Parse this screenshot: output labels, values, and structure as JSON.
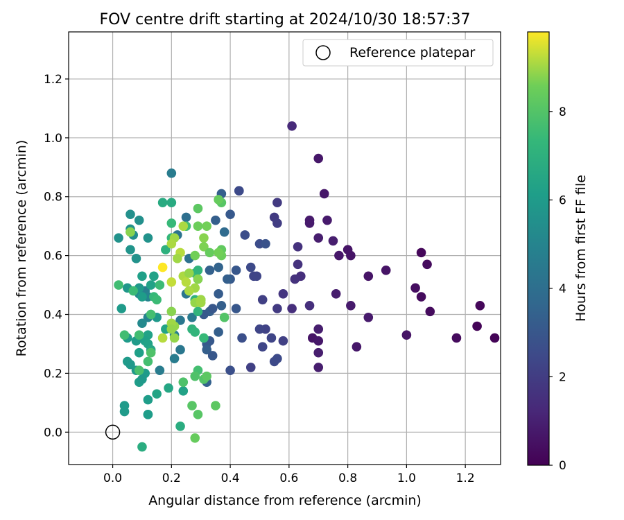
{
  "chart_data": {
    "type": "scatter",
    "title": "FOV centre drift starting at 2024/10/30 18:57:37",
    "xlabel": "Angular distance from reference (arcmin)",
    "ylabel": "Rotation from reference (arcmin)",
    "xlim": [
      -0.15,
      1.32
    ],
    "ylim": [
      -0.11,
      1.36
    ],
    "xticks": [
      "0.0",
      "0.2",
      "0.4",
      "0.6",
      "0.8",
      "1.0",
      "1.2"
    ],
    "yticks": [
      "0.0",
      "0.2",
      "0.4",
      "0.6",
      "0.8",
      "1.0",
      "1.2"
    ],
    "grid": true,
    "legend": {
      "position": "top-right",
      "label": "Reference platepar"
    },
    "reference_point": {
      "x": 0.0,
      "y": 0.0
    },
    "colorbar": {
      "label": "Hours from first FF file",
      "range": [
        0,
        9.8
      ],
      "ticks": [
        "0",
        "2",
        "4",
        "6",
        "8"
      ],
      "colormap": "viridis"
    },
    "series": [
      {
        "points": [
          [
            0.61,
            1.04,
            1.3
          ],
          [
            0.7,
            0.93,
            0.7
          ],
          [
            0.72,
            0.81,
            0.7
          ],
          [
            0.73,
            0.72,
            0.8
          ],
          [
            0.67,
            0.71,
            0.8
          ],
          [
            0.75,
            0.65,
            0.9
          ],
          [
            0.7,
            0.66,
            0.9
          ],
          [
            0.77,
            0.6,
            0.7
          ],
          [
            0.8,
            0.62,
            0.6
          ],
          [
            0.81,
            0.6,
            0.6
          ],
          [
            0.56,
            0.78,
            1.9
          ],
          [
            0.55,
            0.73,
            1.9
          ],
          [
            0.56,
            0.71,
            2.0
          ],
          [
            0.67,
            0.72,
            0.8
          ],
          [
            0.63,
            0.63,
            1.6
          ],
          [
            0.63,
            0.57,
            1.6
          ],
          [
            0.64,
            0.53,
            1.5
          ],
          [
            0.62,
            0.52,
            1.6
          ],
          [
            0.5,
            0.64,
            2.6
          ],
          [
            0.52,
            0.64,
            2.8
          ],
          [
            0.47,
            0.56,
            2.5
          ],
          [
            0.48,
            0.53,
            2.3
          ],
          [
            0.49,
            0.53,
            2.3
          ],
          [
            0.43,
            0.82,
            2.8
          ],
          [
            0.43,
            0.82,
            2.5
          ],
          [
            0.45,
            0.67,
            2.6
          ],
          [
            0.37,
            0.81,
            3.3
          ],
          [
            0.4,
            0.74,
            3.1
          ],
          [
            0.38,
            0.68,
            3.8
          ],
          [
            0.35,
            0.72,
            3.3
          ],
          [
            0.36,
            0.56,
            3.5
          ],
          [
            0.4,
            0.52,
            3.1
          ],
          [
            0.39,
            0.52,
            3.3
          ],
          [
            0.42,
            0.55,
            3.0
          ],
          [
            0.33,
            0.55,
            3.4
          ],
          [
            0.93,
            0.55,
            0.6
          ],
          [
            0.87,
            0.53,
            0.6
          ],
          [
            1.03,
            0.49,
            0.4
          ],
          [
            1.05,
            0.61,
            0.2
          ],
          [
            1.07,
            0.57,
            0.3
          ],
          [
            1.05,
            0.46,
            0.3
          ],
          [
            1.08,
            0.41,
            0.3
          ],
          [
            0.76,
            0.47,
            0.9
          ],
          [
            0.81,
            0.43,
            0.8
          ],
          [
            0.87,
            0.39,
            0.8
          ],
          [
            0.83,
            0.29,
            0.7
          ],
          [
            1.0,
            0.33,
            0.6
          ],
          [
            1.17,
            0.32,
            0.3
          ],
          [
            1.24,
            0.36,
            0.1
          ],
          [
            1.25,
            0.43,
            0.2
          ],
          [
            1.3,
            0.32,
            0.1
          ],
          [
            0.7,
            0.35,
            0.9
          ],
          [
            0.68,
            0.32,
            0.6
          ],
          [
            0.7,
            0.31,
            0.7
          ],
          [
            0.7,
            0.27,
            0.9
          ],
          [
            0.7,
            0.22,
            0.9
          ],
          [
            0.67,
            0.43,
            1.5
          ],
          [
            0.61,
            0.42,
            1.5
          ],
          [
            0.58,
            0.47,
            1.7
          ],
          [
            0.56,
            0.42,
            1.9
          ],
          [
            0.51,
            0.45,
            2.1
          ],
          [
            0.52,
            0.35,
            2.2
          ],
          [
            0.5,
            0.35,
            2.3
          ],
          [
            0.54,
            0.32,
            2.3
          ],
          [
            0.58,
            0.31,
            2.1
          ],
          [
            0.51,
            0.29,
            2.3
          ],
          [
            0.56,
            0.25,
            2.5
          ],
          [
            0.55,
            0.24,
            2.5
          ],
          [
            0.47,
            0.22,
            2.1
          ],
          [
            0.4,
            0.21,
            2.7
          ],
          [
            0.44,
            0.32,
            2.7
          ],
          [
            0.42,
            0.42,
            3.0
          ],
          [
            0.36,
            0.47,
            3.2
          ],
          [
            0.37,
            0.43,
            3.3
          ],
          [
            0.33,
            0.41,
            3.3
          ],
          [
            0.34,
            0.42,
            3.0
          ],
          [
            0.31,
            0.4,
            3.1
          ],
          [
            0.36,
            0.34,
            3.3
          ],
          [
            0.32,
            0.3,
            3.1
          ],
          [
            0.33,
            0.31,
            3.1
          ],
          [
            0.32,
            0.28,
            3.3
          ],
          [
            0.34,
            0.26,
            3.0
          ],
          [
            0.32,
            0.17,
            3.4
          ],
          [
            0.25,
            0.73,
            4.0
          ],
          [
            0.22,
            0.67,
            4.2
          ],
          [
            0.26,
            0.59,
            4.1
          ],
          [
            0.26,
            0.48,
            4.1
          ],
          [
            0.25,
            0.47,
            4.3
          ],
          [
            0.27,
            0.39,
            4.5
          ],
          [
            0.23,
            0.38,
            4.4
          ],
          [
            0.21,
            0.33,
            4.8
          ],
          [
            0.21,
            0.25,
            4.6
          ],
          [
            0.23,
            0.28,
            4.4
          ],
          [
            0.16,
            0.21,
            4.6
          ],
          [
            0.11,
            0.48,
            4.8
          ],
          [
            0.12,
            0.46,
            5.0
          ],
          [
            0.13,
            0.4,
            5.0
          ],
          [
            0.12,
            0.39,
            4.9
          ],
          [
            0.1,
            0.37,
            5.2
          ],
          [
            0.09,
            0.47,
            5.1
          ],
          [
            0.2,
            0.88,
            4.6
          ],
          [
            0.06,
            0.74,
            5.5
          ],
          [
            0.09,
            0.72,
            5.5
          ],
          [
            0.06,
            0.69,
            5.6
          ],
          [
            0.07,
            0.67,
            5.4
          ],
          [
            0.12,
            0.66,
            5.6
          ],
          [
            0.02,
            0.66,
            5.6
          ],
          [
            0.06,
            0.62,
            5.7
          ],
          [
            0.08,
            0.59,
            5.6
          ],
          [
            0.1,
            0.53,
            6.2
          ],
          [
            0.14,
            0.53,
            6.3
          ],
          [
            0.05,
            0.49,
            5.8
          ],
          [
            0.03,
            0.42,
            6.0
          ],
          [
            0.13,
            0.5,
            6.3
          ],
          [
            0.09,
            0.49,
            5.9
          ],
          [
            0.1,
            0.46,
            6.1
          ],
          [
            0.15,
            0.39,
            5.9
          ],
          [
            0.18,
            0.35,
            6.4
          ],
          [
            0.12,
            0.33,
            6.3
          ],
          [
            0.11,
            0.31,
            6.2
          ],
          [
            0.08,
            0.31,
            6.0
          ],
          [
            0.05,
            0.32,
            6.0
          ],
          [
            0.12,
            0.3,
            6.3
          ],
          [
            0.13,
            0.28,
            6.5
          ],
          [
            0.09,
            0.27,
            6.2
          ],
          [
            0.11,
            0.2,
            6.0
          ],
          [
            0.05,
            0.24,
            6.0
          ],
          [
            0.06,
            0.23,
            5.9
          ],
          [
            0.08,
            0.21,
            5.9
          ],
          [
            0.09,
            0.17,
            6.1
          ],
          [
            0.1,
            0.18,
            5.9
          ],
          [
            0.04,
            0.09,
            6.0
          ],
          [
            0.04,
            0.07,
            6.0
          ],
          [
            0.12,
            0.11,
            6.1
          ],
          [
            0.12,
            0.06,
            6.0
          ],
          [
            0.12,
            0.06,
            6.1
          ],
          [
            0.15,
            0.13,
            6.4
          ],
          [
            0.19,
            0.15,
            6.5
          ],
          [
            0.24,
            0.14,
            6.3
          ],
          [
            0.23,
            0.02,
            6.8
          ],
          [
            0.1,
            -0.05,
            6.8
          ],
          [
            0.17,
            0.78,
            6.7
          ],
          [
            0.2,
            0.78,
            6.7
          ],
          [
            0.18,
            0.62,
            7.0
          ],
          [
            0.2,
            0.66,
            7.3
          ],
          [
            0.25,
            0.7,
            7.6
          ],
          [
            0.2,
            0.71,
            7.4
          ],
          [
            0.28,
            0.54,
            7.5
          ],
          [
            0.29,
            0.52,
            7.3
          ],
          [
            0.29,
            0.55,
            7.2
          ],
          [
            0.3,
            0.45,
            7.1
          ],
          [
            0.28,
            0.45,
            7.1
          ],
          [
            0.29,
            0.41,
            7.2
          ],
          [
            0.27,
            0.35,
            7.1
          ],
          [
            0.28,
            0.34,
            7.2
          ],
          [
            0.31,
            0.32,
            7.4
          ],
          [
            0.16,
            0.5,
            7.5
          ],
          [
            0.14,
            0.46,
            7.4
          ],
          [
            0.15,
            0.45,
            7.5
          ],
          [
            0.13,
            0.4,
            7.7
          ],
          [
            0.13,
            0.27,
            7.9
          ],
          [
            0.12,
            0.24,
            7.7
          ],
          [
            0.09,
            0.21,
            7.8
          ],
          [
            0.09,
            0.33,
            7.6
          ],
          [
            0.07,
            0.48,
            7.5
          ],
          [
            0.02,
            0.5,
            7.6
          ],
          [
            0.04,
            0.33,
            7.6
          ],
          [
            0.06,
            0.68,
            8.0
          ],
          [
            0.06,
            0.68,
            8.8
          ],
          [
            0.29,
            0.21,
            7.7
          ],
          [
            0.28,
            0.19,
            7.9
          ],
          [
            0.24,
            0.17,
            7.9
          ],
          [
            0.31,
            0.18,
            8.0
          ],
          [
            0.32,
            0.19,
            8.2
          ],
          [
            0.27,
            0.09,
            8.1
          ],
          [
            0.29,
            0.06,
            8.1
          ],
          [
            0.35,
            0.09,
            8.2
          ],
          [
            0.28,
            -0.02,
            8.4
          ],
          [
            0.37,
            0.78,
            8.1
          ],
          [
            0.36,
            0.79,
            8.4
          ],
          [
            0.29,
            0.76,
            8.2
          ],
          [
            0.32,
            0.7,
            8.6
          ],
          [
            0.29,
            0.7,
            8.5
          ],
          [
            0.31,
            0.66,
            8.8
          ],
          [
            0.28,
            0.6,
            8.6
          ],
          [
            0.31,
            0.63,
            8.7
          ],
          [
            0.33,
            0.61,
            8.4
          ],
          [
            0.37,
            0.62,
            8.3
          ],
          [
            0.37,
            0.6,
            8.5
          ],
          [
            0.36,
            0.61,
            8.6
          ],
          [
            0.23,
            0.61,
            9.2
          ],
          [
            0.21,
            0.66,
            9.0
          ],
          [
            0.24,
            0.7,
            9.1
          ],
          [
            0.2,
            0.64,
            9.1
          ],
          [
            0.17,
            0.56,
            9.8
          ],
          [
            0.2,
            0.51,
            9.3
          ],
          [
            0.22,
            0.59,
            9.0
          ],
          [
            0.24,
            0.53,
            9.1
          ],
          [
            0.26,
            0.54,
            8.9
          ],
          [
            0.28,
            0.49,
            9.0
          ],
          [
            0.29,
            0.52,
            8.8
          ],
          [
            0.26,
            0.48,
            9.1
          ],
          [
            0.28,
            0.44,
            8.9
          ],
          [
            0.3,
            0.44,
            9.0
          ],
          [
            0.3,
            0.45,
            9.0
          ],
          [
            0.2,
            0.41,
            8.8
          ],
          [
            0.21,
            0.36,
            8.9
          ],
          [
            0.2,
            0.37,
            9.0
          ],
          [
            0.2,
            0.35,
            8.9
          ],
          [
            0.17,
            0.32,
            9.2
          ],
          [
            0.21,
            0.32,
            8.9
          ],
          [
            0.25,
            0.51,
            9.2
          ],
          [
            0.38,
            0.39,
            8.0
          ]
        ]
      }
    ]
  }
}
